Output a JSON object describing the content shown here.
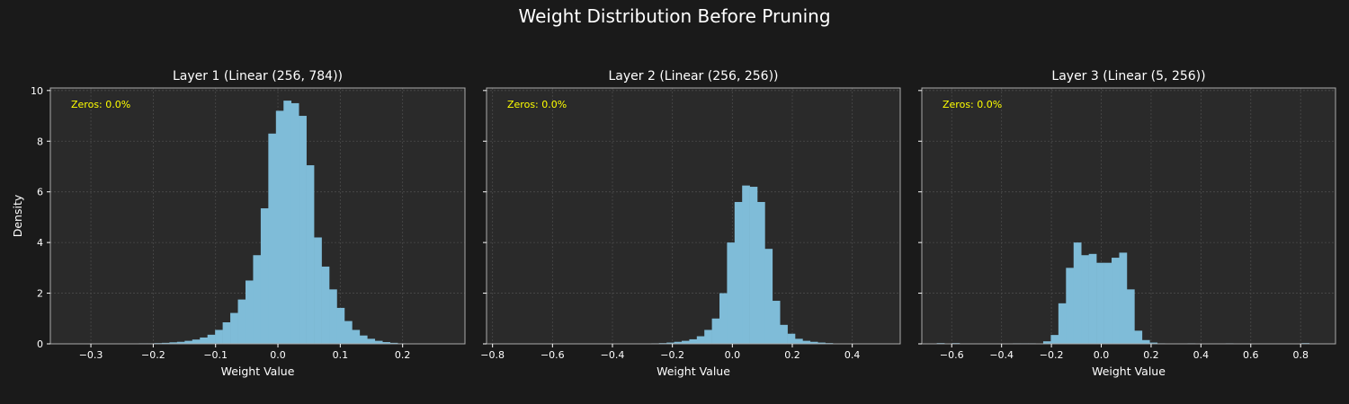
{
  "title": "Weight Distribution Before Pruning",
  "colors": {
    "background": "#1a1a1a",
    "axes_face": "#2a2a2a",
    "bars": "#7fbcd8",
    "grid": "#4a4a4a",
    "spine": "#aaaaaa",
    "text": "#ffffff",
    "annotation": "#ffff00"
  },
  "chart_data": [
    {
      "type": "bar",
      "title": "Layer 1 (Linear (256, 784))",
      "xlabel": "Weight Value",
      "ylabel": "Density",
      "annotation": "Zeros: 0.0%",
      "grid": true,
      "xlim": [
        -0.365,
        0.3
      ],
      "ylim": [
        0,
        10.1
      ],
      "xticks": [
        -0.3,
        -0.2,
        -0.1,
        0.0,
        0.1,
        0.2
      ],
      "xtick_labels": [
        "−0.3",
        "−0.2",
        "−0.1",
        "0.0",
        "0.1",
        "0.2"
      ],
      "yticks": [
        0,
        2,
        4,
        6,
        8,
        10
      ],
      "ytick_labels": [
        "0",
        "2",
        "4",
        "6",
        "8",
        "10"
      ],
      "bin_start": -0.235,
      "bin_width": 0.0122,
      "values": [
        0.01,
        0.02,
        0.02,
        0.03,
        0.04,
        0.06,
        0.08,
        0.12,
        0.17,
        0.25,
        0.36,
        0.55,
        0.85,
        1.22,
        1.75,
        2.5,
        3.5,
        5.35,
        8.3,
        9.2,
        9.6,
        9.5,
        9.0,
        7.05,
        4.2,
        3.05,
        2.15,
        1.42,
        0.9,
        0.55,
        0.33,
        0.2,
        0.12,
        0.07,
        0.04,
        0.02,
        0.01
      ]
    },
    {
      "type": "bar",
      "title": "Layer 2 (Linear (256, 256))",
      "xlabel": "Weight Value",
      "ylabel": "",
      "annotation": "Zeros: 0.0%",
      "grid": true,
      "xlim": [
        -0.82,
        0.56
      ],
      "ylim": [
        0,
        10.1
      ],
      "xticks": [
        -0.8,
        -0.6,
        -0.4,
        -0.2,
        0.0,
        0.2,
        0.4
      ],
      "xtick_labels": [
        "−0.8",
        "−0.6",
        "−0.4",
        "−0.2",
        "0.0",
        "0.2",
        "0.4"
      ],
      "yticks": [
        0,
        2,
        4,
        6,
        8,
        10
      ],
      "ytick_labels": [
        "",
        "",
        "",
        "",
        "",
        ""
      ],
      "bin_start": -0.295,
      "bin_width": 0.0252,
      "values": [
        0.01,
        0.02,
        0.03,
        0.05,
        0.08,
        0.12,
        0.18,
        0.3,
        0.55,
        1.0,
        2.0,
        4.0,
        5.6,
        6.25,
        6.2,
        5.6,
        3.75,
        1.7,
        0.75,
        0.4,
        0.2,
        0.12,
        0.08,
        0.05,
        0.03,
        0.01
      ]
    },
    {
      "type": "bar",
      "title": "Layer 3 (Linear (5, 256))",
      "xlabel": "Weight Value",
      "ylabel": "",
      "annotation": "Zeros: 0.0%",
      "grid": true,
      "xlim": [
        -0.72,
        0.94
      ],
      "ylim": [
        0,
        10.1
      ],
      "xticks": [
        -0.6,
        -0.4,
        -0.2,
        0.0,
        0.2,
        0.4,
        0.6,
        0.8
      ],
      "xtick_labels": [
        "−0.6",
        "−0.4",
        "−0.2",
        "0.0",
        "0.2",
        "0.4",
        "0.6",
        "0.8"
      ],
      "yticks": [
        0,
        2,
        4,
        6,
        8,
        10
      ],
      "ytick_labels": [
        "",
        "",
        "",
        "",
        "",
        ""
      ],
      "bin_start": -0.66,
      "bin_width": 0.0305,
      "values": [
        0.03,
        0,
        0.03,
        0,
        0,
        0,
        0,
        0,
        0,
        0,
        0.02,
        0.02,
        0.02,
        0,
        0.1,
        0.35,
        1.6,
        3.0,
        4.0,
        3.5,
        3.55,
        3.2,
        3.2,
        3.4,
        3.6,
        2.15,
        0.52,
        0.15,
        0.05,
        0.02,
        0,
        0,
        0,
        0.02,
        0,
        0,
        0,
        0,
        0.02,
        0,
        0,
        0,
        0,
        0,
        0,
        0,
        0,
        0,
        0.03
      ]
    }
  ]
}
